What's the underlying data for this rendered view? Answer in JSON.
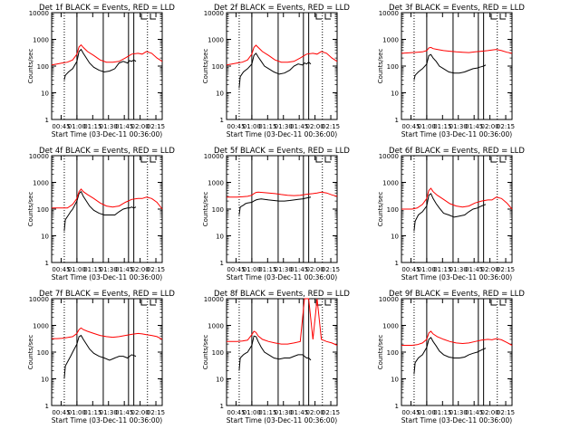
{
  "colors": {
    "events": "#000000",
    "lld": "#ff0000",
    "axis": "#000000",
    "background": "#ffffff"
  },
  "axis_common": {
    "ylabel": "Counts/sec",
    "xlabel": "Start Time (03-Dec-11 00:36:00)",
    "xticks": [
      "00:45",
      "01:00",
      "01:15",
      "01:30",
      "01:45",
      "02:00",
      "02:15"
    ],
    "yticks": [
      "1",
      "10",
      "100",
      "1000",
      "10000"
    ],
    "y_scale": "log",
    "ylim": [
      1,
      10000
    ],
    "xlim_minutes_after_start": [
      0,
      105
    ],
    "dotted_lines_at": [
      "00:48",
      "02:07"
    ],
    "solid_lines_at": [
      "01:00",
      "01:25",
      "01:49",
      "01:54"
    ]
  },
  "chart_data": [
    {
      "type": "line",
      "title": "Det 1f BLACK = Events, RED = LLD",
      "x_minutes": [
        0,
        5,
        8,
        12,
        15,
        18,
        22,
        26,
        30,
        36,
        42,
        48,
        54,
        60,
        66,
        72,
        78,
        84,
        90,
        96,
        102,
        105
      ],
      "series": [
        {
          "name": "BLACK = Events",
          "x": [
            12,
            13,
            16,
            18,
            20,
            24,
            26,
            28,
            30,
            33,
            36,
            40,
            45,
            50,
            55,
            60,
            64,
            68,
            72,
            74,
            76,
            78,
            80
          ],
          "values": [
            30,
            45,
            60,
            70,
            80,
            150,
            350,
            420,
            300,
            200,
            130,
            90,
            70,
            60,
            65,
            80,
            130,
            150,
            130,
            160,
            150,
            170,
            150
          ]
        },
        {
          "name": "RED = LLD",
          "x": [
            0,
            5,
            10,
            15,
            20,
            24,
            26,
            28,
            30,
            34,
            40,
            46,
            52,
            58,
            64,
            70,
            76,
            82,
            86,
            90,
            95,
            100,
            105
          ],
          "values": [
            110,
            120,
            130,
            140,
            170,
            280,
            520,
            620,
            500,
            350,
            250,
            170,
            140,
            140,
            150,
            200,
            280,
            300,
            280,
            350,
            300,
            200,
            150
          ]
        }
      ]
    },
    {
      "type": "line",
      "title": "Det 2f BLACK = Events, RED = LLD",
      "series": [
        {
          "name": "BLACK = Events",
          "x": [
            12,
            13,
            16,
            18,
            20,
            24,
            26,
            28,
            30,
            33,
            36,
            40,
            45,
            50,
            55,
            60,
            64,
            68,
            72,
            74,
            76,
            78,
            80
          ],
          "values": [
            15,
            40,
            60,
            70,
            80,
            120,
            250,
            300,
            220,
            150,
            100,
            80,
            60,
            50,
            55,
            70,
            100,
            120,
            110,
            130,
            120,
            140,
            120
          ]
        },
        {
          "name": "RED = LLD",
          "x": [
            0,
            5,
            10,
            15,
            20,
            24,
            26,
            28,
            30,
            34,
            40,
            46,
            52,
            58,
            64,
            70,
            76,
            82,
            86,
            90,
            95,
            100,
            105
          ],
          "values": [
            110,
            120,
            130,
            140,
            170,
            280,
            500,
            600,
            500,
            350,
            250,
            170,
            140,
            140,
            150,
            200,
            280,
            300,
            280,
            350,
            300,
            200,
            150
          ]
        }
      ]
    },
    {
      "type": "line",
      "title": "Det 3f BLACK = Events, RED = LLD",
      "series": [
        {
          "name": "BLACK = Events",
          "x": [
            12,
            13,
            16,
            18,
            20,
            24,
            26,
            28,
            30,
            33,
            36,
            40,
            45,
            50,
            55,
            60,
            64,
            68,
            72,
            74,
            76,
            78,
            80
          ],
          "values": [
            30,
            45,
            60,
            70,
            80,
            120,
            250,
            270,
            200,
            150,
            100,
            80,
            60,
            55,
            55,
            60,
            70,
            80,
            85,
            90,
            95,
            100,
            110
          ]
        },
        {
          "name": "RED = LLD",
          "x": [
            0,
            5,
            10,
            15,
            20,
            24,
            26,
            28,
            30,
            34,
            40,
            46,
            52,
            58,
            64,
            70,
            76,
            82,
            86,
            90,
            95,
            100,
            105
          ],
          "values": [
            300,
            310,
            320,
            330,
            340,
            380,
            480,
            500,
            450,
            420,
            380,
            360,
            340,
            330,
            320,
            340,
            360,
            380,
            400,
            420,
            380,
            330,
            300
          ]
        }
      ]
    },
    {
      "type": "line",
      "title": "Det 4f BLACK = Events, RED = LLD",
      "series": [
        {
          "name": "BLACK = Events",
          "x": [
            12,
            13,
            16,
            18,
            20,
            24,
            26,
            28,
            30,
            33,
            36,
            40,
            45,
            50,
            55,
            60,
            64,
            68,
            72,
            74,
            76,
            78,
            80
          ],
          "values": [
            15,
            40,
            60,
            80,
            100,
            200,
            380,
            450,
            300,
            200,
            130,
            90,
            70,
            60,
            60,
            60,
            80,
            100,
            110,
            110,
            120,
            110,
            120
          ]
        },
        {
          "name": "RED = LLD",
          "x": [
            0,
            5,
            10,
            15,
            20,
            24,
            26,
            28,
            30,
            34,
            40,
            46,
            52,
            58,
            64,
            70,
            76,
            82,
            86,
            90,
            95,
            100,
            105
          ],
          "values": [
            110,
            110,
            110,
            110,
            150,
            250,
            450,
            560,
            450,
            350,
            250,
            170,
            130,
            120,
            130,
            180,
            230,
            250,
            250,
            280,
            250,
            180,
            100
          ]
        }
      ]
    },
    {
      "type": "line",
      "title": "Det 5f BLACK = Events, RED = LLD",
      "series": [
        {
          "name": "BLACK = Events",
          "x": [
            12,
            13,
            16,
            18,
            20,
            24,
            26,
            28,
            30,
            33,
            36,
            40,
            45,
            50,
            55,
            60,
            64,
            68,
            72,
            74,
            76,
            78,
            80
          ],
          "values": [
            60,
            120,
            140,
            160,
            170,
            180,
            200,
            220,
            230,
            240,
            230,
            220,
            210,
            200,
            200,
            210,
            220,
            230,
            240,
            250,
            260,
            270,
            280
          ]
        },
        {
          "name": "RED = LLD",
          "x": [
            0,
            5,
            10,
            15,
            20,
            24,
            26,
            28,
            30,
            34,
            40,
            46,
            52,
            58,
            64,
            70,
            76,
            82,
            86,
            90,
            95,
            100,
            105
          ],
          "values": [
            280,
            280,
            280,
            290,
            300,
            330,
            380,
            420,
            430,
            420,
            400,
            380,
            350,
            330,
            320,
            330,
            360,
            380,
            400,
            430,
            400,
            340,
            300
          ]
        }
      ]
    },
    {
      "type": "line",
      "title": "Det 6f BLACK = Events, RED = LLD",
      "series": [
        {
          "name": "BLACK = Events",
          "x": [
            12,
            13,
            16,
            18,
            20,
            24,
            26,
            28,
            30,
            33,
            36,
            40,
            45,
            50,
            55,
            60,
            64,
            68,
            72,
            74,
            76,
            78,
            80
          ],
          "values": [
            15,
            35,
            60,
            70,
            80,
            130,
            330,
            380,
            250,
            160,
            110,
            70,
            60,
            50,
            55,
            60,
            80,
            100,
            110,
            120,
            130,
            140,
            150
          ]
        },
        {
          "name": "RED = LLD",
          "x": [
            0,
            5,
            10,
            15,
            20,
            24,
            26,
            28,
            30,
            34,
            40,
            46,
            52,
            58,
            64,
            70,
            76,
            82,
            86,
            90,
            95,
            100,
            105
          ],
          "values": [
            100,
            100,
            100,
            110,
            150,
            250,
            500,
            600,
            450,
            330,
            230,
            160,
            130,
            120,
            130,
            170,
            200,
            220,
            220,
            280,
            250,
            170,
            100
          ]
        }
      ]
    },
    {
      "type": "line",
      "title": "Det 7f BLACK = Events, RED = LLD",
      "series": [
        {
          "name": "BLACK = Events",
          "x": [
            12,
            13,
            16,
            18,
            20,
            24,
            26,
            28,
            30,
            33,
            36,
            40,
            45,
            50,
            55,
            60,
            64,
            68,
            72,
            74,
            76,
            78,
            80
          ],
          "values": [
            10,
            30,
            50,
            70,
            100,
            200,
            380,
            420,
            300,
            200,
            130,
            90,
            70,
            60,
            50,
            60,
            70,
            70,
            60,
            70,
            80,
            75,
            70
          ]
        },
        {
          "name": "RED = LLD",
          "x": [
            0,
            5,
            10,
            15,
            20,
            24,
            26,
            28,
            30,
            34,
            40,
            46,
            52,
            58,
            64,
            70,
            76,
            82,
            86,
            90,
            95,
            100,
            105
          ],
          "values": [
            320,
            320,
            330,
            350,
            380,
            500,
            700,
            800,
            700,
            600,
            500,
            420,
            380,
            360,
            380,
            420,
            460,
            500,
            480,
            450,
            420,
            380,
            300
          ]
        }
      ]
    },
    {
      "type": "line",
      "title": "Det 8f BLACK = Events, RED = LLD",
      "series": [
        {
          "name": "BLACK = Events",
          "x": [
            12,
            13,
            16,
            18,
            20,
            24,
            26,
            28,
            30,
            33,
            36,
            40,
            45,
            50,
            55,
            60,
            64,
            68,
            72,
            74,
            76,
            78,
            80
          ],
          "values": [
            20,
            60,
            80,
            90,
            100,
            180,
            400,
            380,
            250,
            150,
            100,
            80,
            60,
            55,
            60,
            60,
            70,
            80,
            80,
            70,
            60,
            60,
            50
          ]
        },
        {
          "name": "RED = LLD",
          "x": [
            0,
            5,
            10,
            15,
            20,
            24,
            26,
            28,
            30,
            34,
            40,
            46,
            52,
            58,
            64,
            70,
            74,
            78,
            82,
            86,
            90,
            95,
            100,
            105
          ],
          "values": [
            250,
            250,
            250,
            260,
            280,
            450,
            600,
            550,
            400,
            300,
            250,
            220,
            200,
            200,
            220,
            250,
            10000,
            10000,
            300,
            10000,
            300,
            250,
            220,
            180
          ]
        }
      ]
    },
    {
      "type": "line",
      "title": "Det 9f BLACK = Events, RED = LLD",
      "series": [
        {
          "name": "BLACK = Events",
          "x": [
            12,
            13,
            16,
            18,
            20,
            24,
            26,
            28,
            30,
            33,
            36,
            40,
            45,
            50,
            55,
            60,
            64,
            68,
            72,
            74,
            76,
            78,
            80
          ],
          "values": [
            15,
            40,
            60,
            70,
            80,
            150,
            300,
            350,
            250,
            170,
            110,
            80,
            65,
            60,
            60,
            65,
            80,
            90,
            100,
            110,
            120,
            130,
            140
          ]
        },
        {
          "name": "RED = LLD",
          "x": [
            0,
            5,
            10,
            15,
            20,
            24,
            26,
            28,
            30,
            34,
            40,
            46,
            52,
            58,
            64,
            70,
            76,
            82,
            86,
            90,
            95,
            100,
            105
          ],
          "values": [
            180,
            180,
            180,
            190,
            220,
            300,
            520,
            600,
            480,
            380,
            300,
            250,
            220,
            210,
            220,
            250,
            280,
            300,
            290,
            320,
            290,
            230,
            180
          ]
        }
      ]
    }
  ]
}
